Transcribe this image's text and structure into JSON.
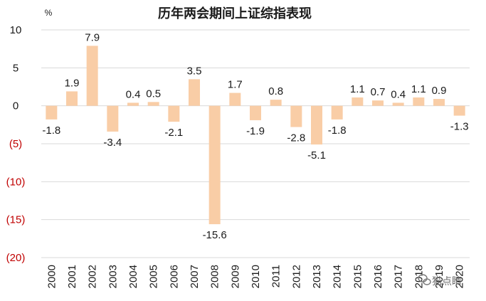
{
  "chart_data": {
    "type": "bar",
    "title": "历年两会期间上证综指表现",
    "ylabel": "%",
    "xlabel": "",
    "ylim": [
      -20,
      10
    ],
    "yticks": [
      10,
      5,
      0,
      -5,
      -10,
      -15,
      -20
    ],
    "ytick_labels": [
      "10",
      "5",
      "0",
      "(5)",
      "(10)",
      "(15)",
      "(20)"
    ],
    "grid": true,
    "categories": [
      "2000",
      "2001",
      "2002",
      "2003",
      "2004",
      "2005",
      "2006",
      "2007",
      "2008",
      "2009",
      "2010",
      "2011",
      "2012",
      "2013",
      "2014",
      "2015",
      "2016",
      "2017",
      "2018",
      "2019",
      "2020"
    ],
    "values": [
      -1.8,
      1.9,
      7.9,
      -3.4,
      0.4,
      0.5,
      -2.1,
      3.5,
      -15.6,
      1.7,
      -1.9,
      0.8,
      -2.8,
      -5.1,
      -1.8,
      1.1,
      0.7,
      0.4,
      1.1,
      0.9,
      -1.3
    ],
    "value_labels": [
      "-1.8",
      "1.9",
      "7.9",
      "-3.4",
      "0.4",
      "0.5",
      "-2.1",
      "3.5",
      "-15.6",
      "1.7",
      "-1.9",
      "0.8",
      "-2.8",
      "-5.1",
      "-1.8",
      "1.1",
      "0.7",
      "0.4",
      "1.1",
      "0.9",
      "-1.3"
    ],
    "colors": {
      "bar": "#f9cda6",
      "negative_tick": "#c00000",
      "positive_tick": "#1a1a1a",
      "grid": "#d9d9d9"
    }
  },
  "watermark": {
    "text": "猫点睛",
    "icon": "wechat-icon"
  }
}
